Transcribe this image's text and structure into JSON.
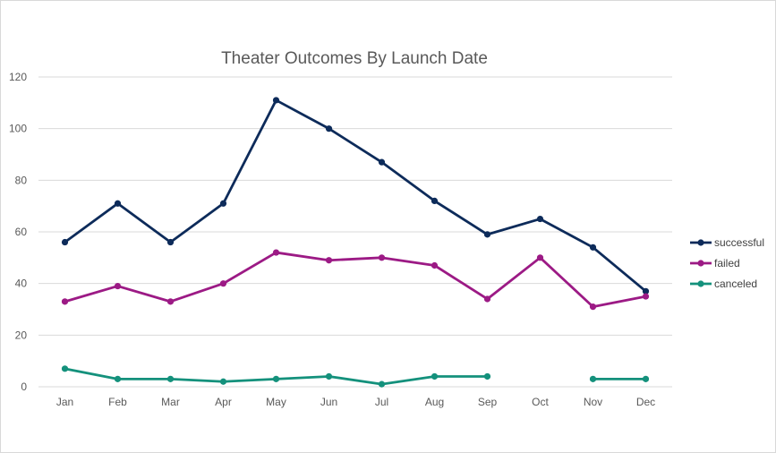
{
  "chart_data": {
    "type": "line",
    "title": "Theater Outcomes By Launch Date",
    "xlabel": "",
    "ylabel": "",
    "categories": [
      "Jan",
      "Feb",
      "Mar",
      "Apr",
      "May",
      "Jun",
      "Jul",
      "Aug",
      "Sep",
      "Oct",
      "Nov",
      "Dec"
    ],
    "ylim": [
      0,
      120
    ],
    "yticks": [
      0,
      20,
      40,
      60,
      80,
      100,
      120
    ],
    "grid": true,
    "legend_position": "right",
    "series": [
      {
        "name": "successful",
        "color": "#0d2b5a",
        "values": [
          56,
          71,
          56,
          71,
          111,
          100,
          87,
          72,
          59,
          65,
          54,
          37
        ]
      },
      {
        "name": "failed",
        "color": "#9c1a85",
        "values": [
          33,
          39,
          33,
          40,
          52,
          49,
          50,
          47,
          34,
          50,
          31,
          35
        ]
      },
      {
        "name": "canceled",
        "color": "#14917c",
        "values": [
          7,
          3,
          3,
          2,
          3,
          4,
          1,
          4,
          4,
          null,
          3,
          3
        ]
      }
    ]
  }
}
